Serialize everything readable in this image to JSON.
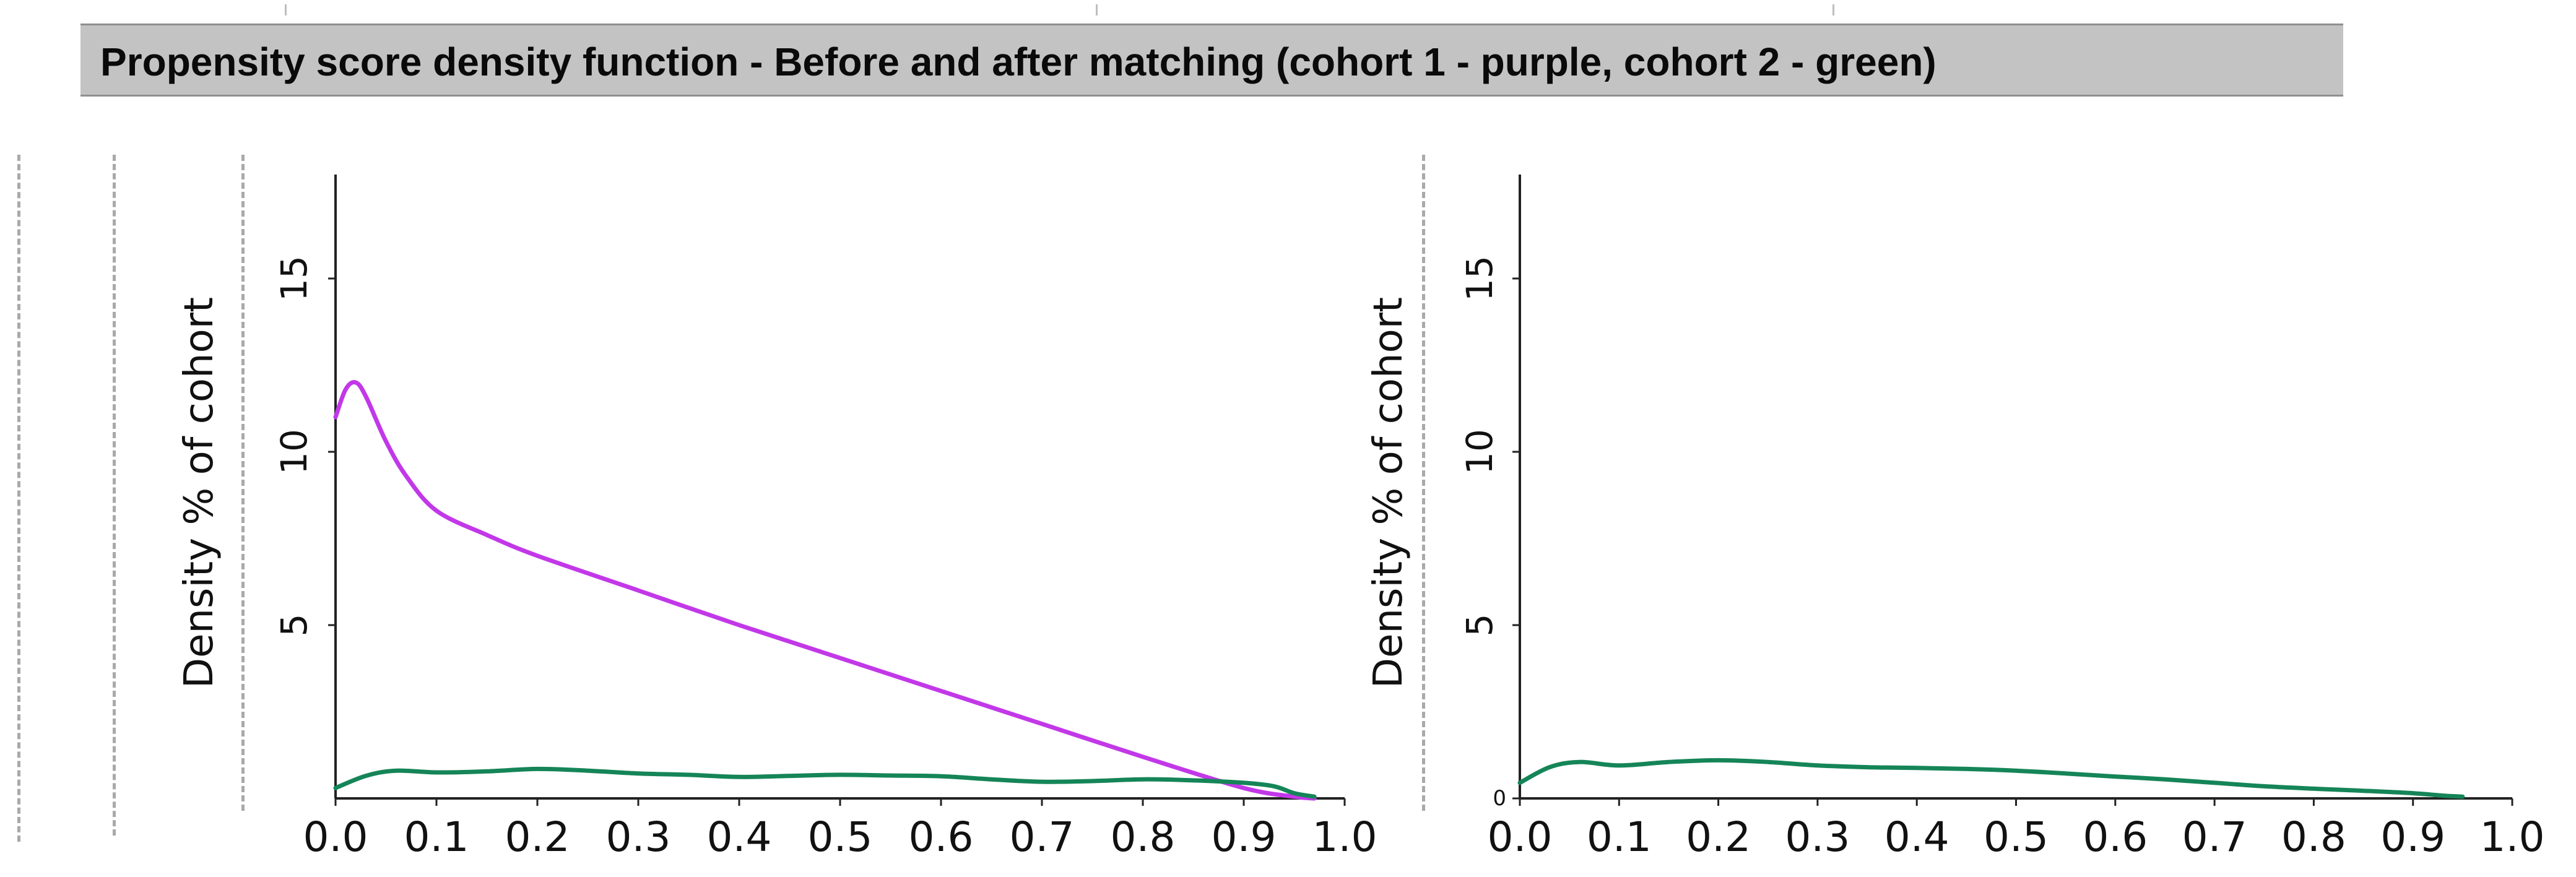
{
  "page_title": "Propensity score density function - Before and after matching (cohort 1 - purple, cohort 2 - green)",
  "colors": {
    "cohort1": "#c238e8",
    "cohort2": "#158558",
    "axis": "#222222",
    "banner": "#c3c3c3"
  },
  "chart_data": [
    {
      "type": "line",
      "title": "",
      "xlabel": "",
      "ylabel": "Density % of cohort",
      "xlim": [
        0,
        1.0
      ],
      "ylim": [
        0,
        18
      ],
      "x_ticks": [
        "0.0",
        "0.1",
        "0.2",
        "0.3",
        "0.4",
        "0.5",
        "0.6",
        "0.7",
        "0.8",
        "0.9",
        "1.0"
      ],
      "y_ticks": [
        "5",
        "10",
        "15"
      ],
      "grid": false,
      "series": [
        {
          "color": "#c238e8",
          "x": [
            0.0,
            0.01,
            0.02,
            0.03,
            0.05,
            0.07,
            0.1,
            0.15,
            0.2,
            0.3,
            0.4,
            0.5,
            0.6,
            0.7,
            0.8,
            0.9,
            0.95,
            0.97
          ],
          "y": [
            11.0,
            11.8,
            12.0,
            11.6,
            10.3,
            9.3,
            8.3,
            7.6,
            7.0,
            6.0,
            5.0,
            4.05,
            3.1,
            2.15,
            1.2,
            0.3,
            0.05,
            0.0
          ]
        },
        {
          "color": "#158558",
          "x": [
            0.0,
            0.03,
            0.06,
            0.1,
            0.15,
            0.2,
            0.25,
            0.3,
            0.35,
            0.4,
            0.45,
            0.5,
            0.55,
            0.6,
            0.65,
            0.7,
            0.75,
            0.8,
            0.85,
            0.9,
            0.93,
            0.95,
            0.97
          ],
          "y": [
            0.3,
            0.65,
            0.8,
            0.75,
            0.78,
            0.85,
            0.8,
            0.72,
            0.68,
            0.62,
            0.65,
            0.68,
            0.66,
            0.64,
            0.55,
            0.48,
            0.5,
            0.55,
            0.52,
            0.45,
            0.35,
            0.15,
            0.05
          ]
        }
      ]
    },
    {
      "type": "line",
      "title": "",
      "xlabel": "",
      "ylabel": "Density % of cohort",
      "xlim": [
        0,
        1.0
      ],
      "ylim": [
        0,
        18
      ],
      "x_ticks": [
        "0.0",
        "0.1",
        "0.2",
        "0.3",
        "0.4",
        "0.5",
        "0.6",
        "0.7",
        "0.8",
        "0.9",
        "1.0"
      ],
      "y_ticks": [
        "0",
        "5",
        "10",
        "15"
      ],
      "grid": false,
      "series": [
        {
          "color": "#158558",
          "x": [
            0.0,
            0.03,
            0.06,
            0.1,
            0.15,
            0.2,
            0.25,
            0.3,
            0.35,
            0.4,
            0.45,
            0.5,
            0.55,
            0.6,
            0.65,
            0.7,
            0.75,
            0.8,
            0.85,
            0.9,
            0.93,
            0.95
          ],
          "y": [
            0.45,
            0.9,
            1.05,
            0.95,
            1.05,
            1.1,
            1.05,
            0.95,
            0.9,
            0.88,
            0.85,
            0.8,
            0.72,
            0.63,
            0.55,
            0.45,
            0.35,
            0.28,
            0.22,
            0.15,
            0.08,
            0.05
          ]
        }
      ]
    }
  ]
}
